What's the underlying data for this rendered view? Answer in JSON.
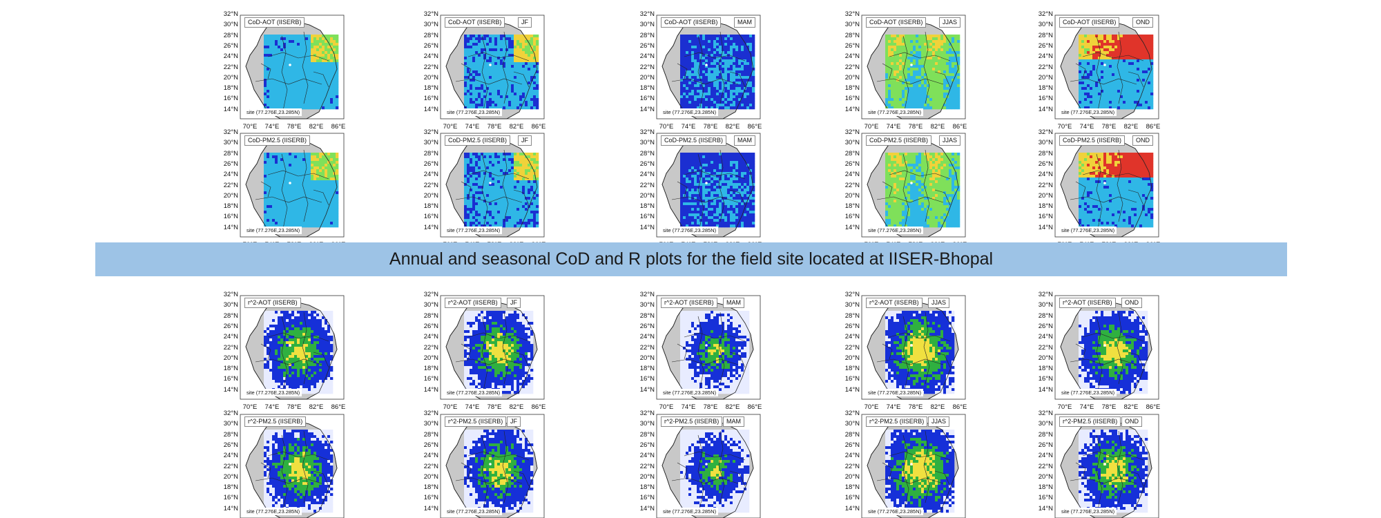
{
  "banner": {
    "title": "Annual and seasonal CoD and R plots for the field site located at IISER-Bhopal"
  },
  "axes": {
    "lat_ticks": [
      "32°N",
      "30°N",
      "28°N",
      "26°N",
      "24°N",
      "22°N",
      "20°N",
      "18°N",
      "16°N",
      "14°N"
    ],
    "lon_ticks": [
      "70°E",
      "74°E",
      "78°E",
      "82°E",
      "86°E"
    ]
  },
  "site_label": "site (77.276E,23.285N)",
  "rows": [
    {
      "id": "cod-aot",
      "variable": "CoD-AOT (IISERB)",
      "palette": "cod",
      "panels": [
        {
          "season": "",
          "pattern": "annual"
        },
        {
          "season": "JF",
          "pattern": "jf"
        },
        {
          "season": "MAM",
          "pattern": "mam"
        },
        {
          "season": "JJAS",
          "pattern": "jjas"
        },
        {
          "season": "OND",
          "pattern": "ond"
        }
      ]
    },
    {
      "id": "cod-pm25",
      "variable": "CoD-PM2.5 (IISERB)",
      "palette": "cod",
      "panels": [
        {
          "season": "",
          "pattern": "annual"
        },
        {
          "season": "JF",
          "pattern": "jf"
        },
        {
          "season": "MAM",
          "pattern": "mam"
        },
        {
          "season": "JJAS",
          "pattern": "jjas"
        },
        {
          "season": "OND",
          "pattern": "ond"
        }
      ]
    },
    {
      "id": "r2-aot",
      "variable": "r^2-AOT (IISERB)",
      "palette": "r2",
      "panels": [
        {
          "season": "",
          "pattern": "annual"
        },
        {
          "season": "JF",
          "pattern": "jf"
        },
        {
          "season": "MAM",
          "pattern": "mam"
        },
        {
          "season": "JJAS",
          "pattern": "jjas"
        },
        {
          "season": "OND",
          "pattern": "ond"
        }
      ]
    },
    {
      "id": "r2-pm25",
      "variable": "r^2-PM2.5 (IISERB)",
      "palette": "r2",
      "panels": [
        {
          "season": "",
          "pattern": "annual"
        },
        {
          "season": "JF",
          "pattern": "jf"
        },
        {
          "season": "MAM",
          "pattern": "mam"
        },
        {
          "season": "JJAS",
          "pattern": "jjas"
        },
        {
          "season": "OND",
          "pattern": "ond"
        }
      ]
    }
  ],
  "colors": {
    "land": "#c8c8c8",
    "border": "#222222",
    "banner": "#9dc3e6",
    "cod_low": "#1b2fd1",
    "cod_mid": "#2fb7e6",
    "cod_high": "#7fe05a",
    "cod_peak": "#f0d23a",
    "cod_hot": "#e0342a",
    "r2_low": "#e8ecff",
    "r2_mid": "#1630d8",
    "r2_high": "#2fb040",
    "r2_peak": "#f0e040"
  }
}
